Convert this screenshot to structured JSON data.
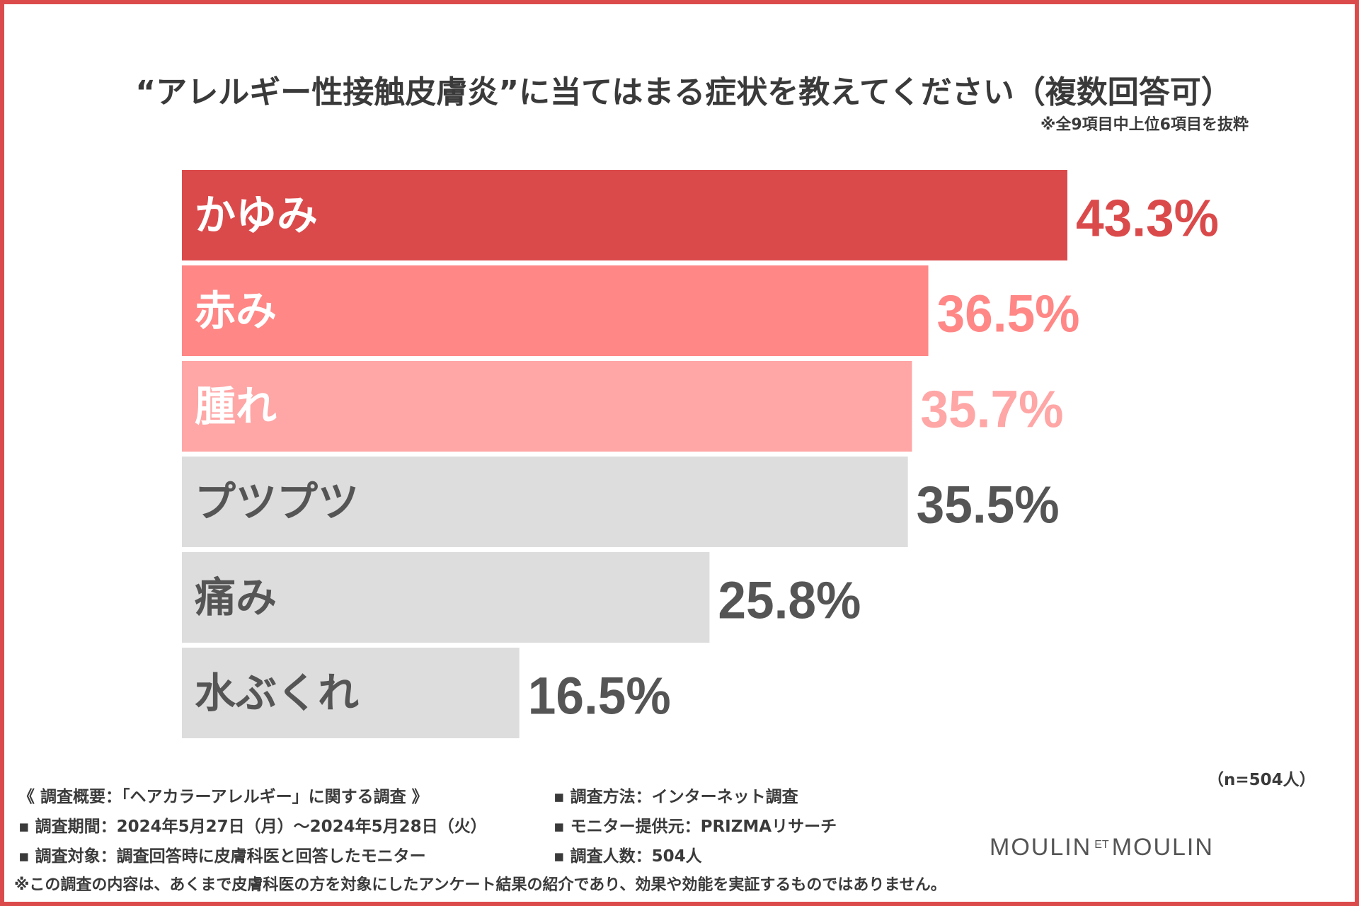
{
  "header": {
    "title": "“アレルギー性接触皮膚炎”に当てはまる症状を教えてください（複数回答可）",
    "subtitle": "※全9項目中上位6項目を抜粋"
  },
  "chart_data": {
    "type": "bar",
    "orientation": "horizontal",
    "title": "“アレルギー性接触皮膚炎”に当てはまる症状を教えてください（複数回答可）",
    "subtitle": "※全9項目中上位6項目を抜粋",
    "categories": [
      "かゆみ",
      "赤み",
      "腫れ",
      "プツプツ",
      "痛み",
      "水ぶくれ"
    ],
    "values": [
      43.3,
      36.5,
      35.7,
      35.5,
      25.8,
      16.5
    ],
    "value_labels": [
      "43.3%",
      "36.5%",
      "35.7%",
      "35.5%",
      "25.8%",
      "16.5%"
    ],
    "unit": "%",
    "xlim": [
      0,
      43.3
    ],
    "bar_colors": [
      "#db4a4b",
      "#ff8786",
      "#ffa6a6",
      "#dddddd",
      "#dddddd",
      "#dddddd"
    ],
    "label_colors": [
      "#ffffff",
      "#ffffff",
      "#ffffff",
      "#555555",
      "#555555",
      "#555555"
    ],
    "value_colors": [
      "#db4a4b",
      "#ff8786",
      "#ffa6a6",
      "#555555",
      "#555555",
      "#555555"
    ],
    "n_note": "（n=504人）"
  },
  "footer": {
    "overview": "《 調査概要：「ヘアカラーアレルギー」に関する調査 》",
    "period": "▪ 調査期間：2024年5月27日（月）～2024年5月28日（火）",
    "target": "▪ 調査対象：調査回答時に皮膚科医と回答したモニター",
    "method": "▪ 調査方法：インターネット調査",
    "provider": "▪ モニター提供元：PRIZMAリサーチ",
    "count": "▪ 調査人数：504人",
    "disclaimer": "※この調査の内容は、あくまで皮膚科医の方を対象にしたアンケート結果の紹介であり、効果や効能を実証するものではありません。"
  },
  "logo": {
    "left": "MOULIN",
    "middle": "ET",
    "right": "MOULIN"
  },
  "colors": {
    "frame": "#dc4b4c",
    "text": "#3a3a3a"
  }
}
